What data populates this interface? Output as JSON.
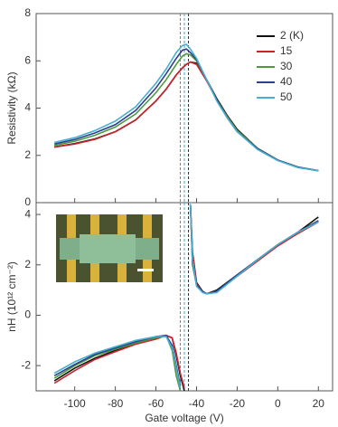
{
  "chart_data": [
    {
      "type": "line",
      "y_label": "Resistivity (kΩ)",
      "x": [
        -110,
        -100,
        -90,
        -80,
        -70,
        -60,
        -55,
        -50,
        -47,
        -45,
        -43,
        -40,
        -35,
        -30,
        -25,
        -20,
        -10,
        0,
        10,
        20
      ],
      "xlim": [
        -119,
        27
      ],
      "xticks": [
        -100,
        -80,
        -60,
        -40,
        -20,
        0,
        20
      ],
      "ylim": [
        0,
        8
      ],
      "yticks": [
        0,
        2,
        4,
        6,
        8
      ],
      "legend": "upper right",
      "vlines": [
        {
          "x": -48,
          "color": "#5aa05a"
        },
        {
          "x": -46,
          "color": "#4a9fd0"
        },
        {
          "x": -44,
          "color": "#333333"
        }
      ],
      "series": [
        {
          "name": "2 (K)",
          "color": "#111111",
          "values": [
            2.35,
            2.5,
            2.7,
            3.0,
            3.5,
            4.3,
            4.8,
            5.4,
            5.7,
            5.85,
            5.95,
            5.9,
            5.2,
            4.4,
            3.7,
            3.1,
            2.3,
            1.8,
            1.5,
            1.35
          ]
        },
        {
          "name": "15",
          "color": "#c8242b",
          "values": [
            2.35,
            2.48,
            2.68,
            3.0,
            3.5,
            4.3,
            4.8,
            5.4,
            5.7,
            5.85,
            5.95,
            5.85,
            5.15,
            4.35,
            3.65,
            3.05,
            2.3,
            1.8,
            1.5,
            1.35
          ]
        },
        {
          "name": "30",
          "color": "#4e9a3e",
          "values": [
            2.42,
            2.6,
            2.85,
            3.2,
            3.75,
            4.65,
            5.2,
            5.85,
            6.2,
            6.3,
            6.25,
            6.0,
            5.2,
            4.35,
            3.65,
            3.05,
            2.3,
            1.8,
            1.5,
            1.35
          ]
        },
        {
          "name": "40",
          "color": "#2b3f8f",
          "values": [
            2.48,
            2.67,
            2.95,
            3.3,
            3.9,
            4.85,
            5.45,
            6.1,
            6.45,
            6.5,
            6.35,
            6.05,
            5.2,
            4.35,
            3.6,
            3.0,
            2.28,
            1.8,
            1.5,
            1.35
          ]
        },
        {
          "name": "50",
          "color": "#4aaed0",
          "values": [
            2.55,
            2.75,
            3.05,
            3.45,
            4.05,
            5.05,
            5.65,
            6.35,
            6.65,
            6.7,
            6.5,
            6.1,
            5.2,
            4.3,
            3.6,
            3.0,
            2.25,
            1.78,
            1.48,
            1.35
          ]
        }
      ]
    },
    {
      "type": "line",
      "y_label": "nH (10¹² cm⁻²)",
      "x_label": "Gate voltage (V)",
      "x": [
        -110,
        -100,
        -90,
        -80,
        -70,
        -60,
        -55,
        -52,
        -50,
        -48,
        -46,
        -44,
        -43,
        -42,
        -40,
        -37,
        -35,
        -30,
        -20,
        -10,
        0,
        10,
        20
      ],
      "xlim": [
        -119,
        27
      ],
      "xticks": [
        -100,
        -80,
        -60,
        -40,
        -20,
        0,
        20
      ],
      "ylim": [
        -3,
        4.47
      ],
      "yticks": [
        -2,
        0,
        2,
        4
      ],
      "vlines": [
        {
          "x": -48,
          "color": "#5aa05a"
        },
        {
          "x": -46,
          "color": "#4a9fd0"
        },
        {
          "x": -44,
          "color": "#333333"
        }
      ],
      "series": [
        {
          "color": "#111111",
          "values": [
            -2.6,
            -2.1,
            -1.7,
            -1.4,
            -1.1,
            -0.9,
            -0.8,
            -0.9,
            -1.6,
            -2.4,
            -3.0,
            null,
            4.4,
            2.5,
            1.3,
            0.95,
            0.85,
            1.0,
            1.6,
            2.2,
            2.8,
            3.3,
            3.9
          ]
        },
        {
          "color": "#c8242b",
          "values": [
            -2.7,
            -2.2,
            -1.75,
            -1.45,
            -1.15,
            -0.95,
            -0.8,
            -0.9,
            -1.5,
            -2.3,
            -2.9,
            null,
            4.4,
            2.4,
            1.25,
            0.95,
            0.85,
            0.95,
            1.55,
            2.15,
            2.75,
            3.25,
            3.7
          ]
        },
        {
          "color": "#4e9a3e",
          "values": [
            -2.5,
            -2.0,
            -1.6,
            -1.35,
            -1.1,
            -0.9,
            -0.8,
            -1.4,
            -2.4,
            -3.0,
            null,
            null,
            4.4,
            2.0,
            1.2,
            0.95,
            0.85,
            0.95,
            1.6,
            2.2,
            2.8,
            3.3,
            3.75
          ]
        },
        {
          "color": "#2b3f8f",
          "values": [
            -2.4,
            -1.95,
            -1.55,
            -1.3,
            -1.05,
            -0.85,
            -0.8,
            -1.2,
            -2.0,
            -2.8,
            null,
            null,
            4.4,
            2.1,
            1.2,
            0.95,
            0.85,
            0.95,
            1.6,
            2.2,
            2.8,
            3.3,
            3.75
          ]
        },
        {
          "color": "#4aaed0",
          "values": [
            -2.3,
            -1.85,
            -1.5,
            -1.25,
            -1.0,
            -0.85,
            -0.85,
            -1.3,
            -2.1,
            -2.9,
            null,
            null,
            4.4,
            2.2,
            1.15,
            0.9,
            0.85,
            0.9,
            1.55,
            2.2,
            2.8,
            3.3,
            3.7
          ]
        }
      ]
    }
  ]
}
